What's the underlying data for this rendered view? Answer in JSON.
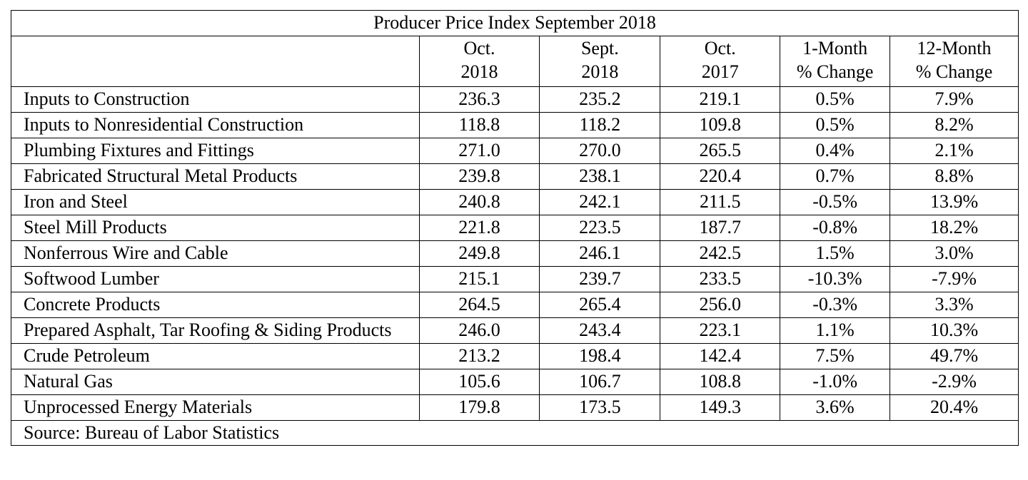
{
  "title": "Producer Price Index September 2018",
  "headers": [
    "",
    "Oct.\n2018",
    "Sept.\n2018",
    "Oct.\n2017",
    "1-Month\n% Change",
    "12-Month\n% Change"
  ],
  "rows": [
    [
      "Inputs to Construction",
      "236.3",
      "235.2",
      "219.1",
      "0.5%",
      "7.9%"
    ],
    [
      "Inputs to Nonresidential Construction",
      "118.8",
      "118.2",
      "109.8",
      "0.5%",
      "8.2%"
    ],
    [
      "Plumbing Fixtures and Fittings",
      "271.0",
      "270.0",
      "265.5",
      "0.4%",
      "2.1%"
    ],
    [
      "Fabricated Structural Metal Products",
      "239.8",
      "238.1",
      "220.4",
      "0.7%",
      "8.8%"
    ],
    [
      "Iron and Steel",
      "240.8",
      "242.1",
      "211.5",
      "-0.5%",
      "13.9%"
    ],
    [
      "Steel Mill Products",
      "221.8",
      "223.5",
      "187.7",
      "-0.8%",
      "18.2%"
    ],
    [
      "Nonferrous Wire and Cable",
      "249.8",
      "246.1",
      "242.5",
      "1.5%",
      "3.0%"
    ],
    [
      "Softwood Lumber",
      "215.1",
      "239.7",
      "233.5",
      "-10.3%",
      "-7.9%"
    ],
    [
      "Concrete Products",
      "264.5",
      "265.4",
      "256.0",
      "-0.3%",
      "3.3%"
    ],
    [
      "Prepared Asphalt, Tar Roofing & Siding Products",
      "246.0",
      "243.4",
      "223.1",
      "1.1%",
      "10.3%"
    ],
    [
      "Crude Petroleum",
      "213.2",
      "198.4",
      "142.4",
      "7.5%",
      "49.7%"
    ],
    [
      "Natural Gas",
      "105.6",
      "106.7",
      "108.8",
      "-1.0%",
      "-2.9%"
    ],
    [
      "Unprocessed Energy Materials",
      "179.8",
      "173.5",
      "149.3",
      "3.6%",
      "20.4%"
    ]
  ],
  "source": "Source: Bureau of Labor Statistics"
}
